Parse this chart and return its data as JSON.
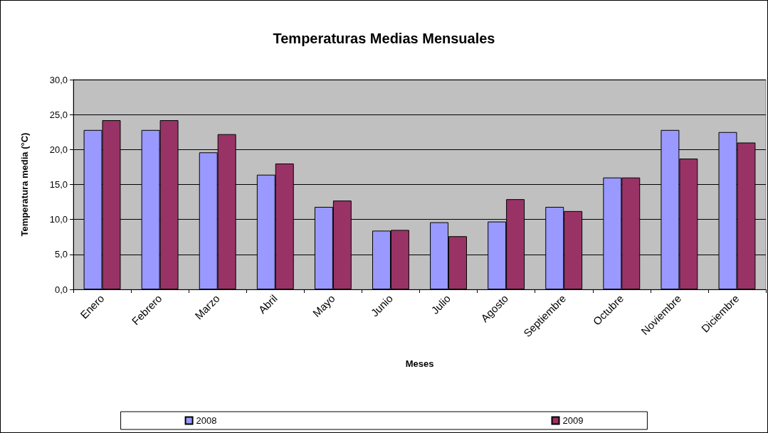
{
  "chart_data": {
    "type": "bar",
    "title": "Temperaturas Medias Mensuales",
    "xlabel": "Meses",
    "ylabel": "Temperatura media (°C)",
    "categories": [
      "Enero",
      "Febrero",
      "Marzo",
      "Abril",
      "Mayo",
      "Junio",
      "Julio",
      "Agosto",
      "Septiembre",
      "Octubre",
      "Noviembre",
      "Diciembre"
    ],
    "series": [
      {
        "name": "2008",
        "color": "#9999ff",
        "values": [
          22.8,
          22.8,
          19.6,
          16.4,
          11.8,
          8.4,
          9.6,
          9.7,
          11.8,
          16.0,
          22.8,
          22.5
        ]
      },
      {
        "name": "2009",
        "color": "#993366",
        "values": [
          24.2,
          24.2,
          22.2,
          18.0,
          12.7,
          8.5,
          7.6,
          12.9,
          11.2,
          16.0,
          18.7,
          21.0
        ]
      }
    ],
    "ylim": [
      0,
      30
    ],
    "yticks": [
      {
        "value": 0,
        "label": "0,0"
      },
      {
        "value": 5,
        "label": "5,0"
      },
      {
        "value": 10,
        "label": "10,0"
      },
      {
        "value": 15,
        "label": "15,0"
      },
      {
        "value": 20,
        "label": "20,0"
      },
      {
        "value": 25,
        "label": "25,0"
      },
      {
        "value": 30,
        "label": "30,0"
      }
    ],
    "grid": "y",
    "legend": "bottom"
  }
}
